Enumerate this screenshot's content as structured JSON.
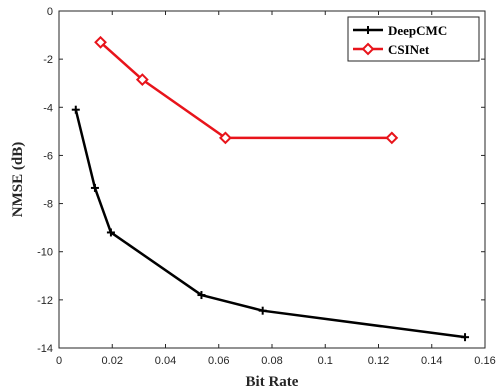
{
  "chart_data": {
    "type": "line",
    "title": "",
    "xlabel": "Bit Rate",
    "ylabel": "NMSE (dB)",
    "xlim": [
      0,
      0.16
    ],
    "ylim": [
      -14,
      0
    ],
    "xticks": [
      0,
      0.02,
      0.04,
      0.06,
      0.08,
      0.1,
      0.12,
      0.14,
      0.16
    ],
    "xtick_labels": [
      "0",
      "0.02",
      "0.04",
      "0.06",
      "0.08",
      "0.1",
      "0.12",
      "0.14",
      "0.16"
    ],
    "yticks": [
      0,
      -2,
      -4,
      -6,
      -8,
      -10,
      -12,
      -14
    ],
    "ytick_labels": [
      "0",
      "-2",
      "-4",
      "-6",
      "-8",
      "-10",
      "-12",
      "-14"
    ],
    "grid": false,
    "legend_position": "top-right",
    "series": [
      {
        "name": "DeepCMC",
        "color": "#000000",
        "marker": "plus",
        "x": [
          0.0063,
          0.0135,
          0.0195,
          0.0535,
          0.0765,
          0.1525
        ],
        "y": [
          -4.1,
          -7.35,
          -9.2,
          -11.8,
          -12.45,
          -13.55
        ]
      },
      {
        "name": "CSINet",
        "color": "#e8141b",
        "marker": "diamond",
        "x": [
          0.0156,
          0.0313,
          0.0625,
          0.125
        ],
        "y": [
          -1.3,
          -2.85,
          -5.27,
          -5.27
        ]
      }
    ]
  }
}
